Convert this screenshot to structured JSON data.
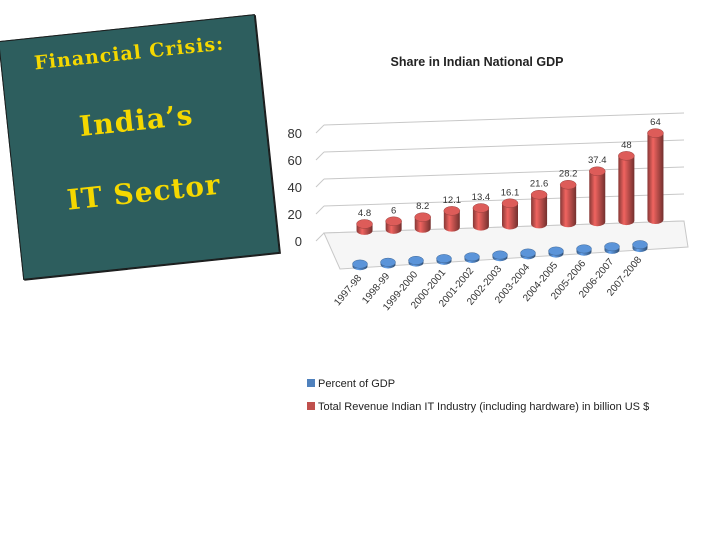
{
  "slide": {
    "title_line1": "Financial Crisis:",
    "title_line2": "India’s",
    "title_line3": "IT Sector",
    "card_color": "#2d5e5e",
    "title_color": "#f5d800"
  },
  "chart_data": {
    "type": "bar",
    "title": "Share in Indian National GDP",
    "categories": [
      "1997-98",
      "1998-99",
      "1999-2000",
      "2000-2001",
      "2001-2002",
      "2002-2003",
      "2003-2004",
      "2004-2005",
      "2005-2006",
      "2006-2007",
      "2007-2008"
    ],
    "series": [
      {
        "name": "Percent of GDP",
        "color": "#4f81bd",
        "values": [
          1.2,
          1.4,
          1.9,
          2.7,
          3.2,
          3.1,
          3.9,
          4.2,
          4.8,
          5.5,
          5.9
        ]
      },
      {
        "name": "Total Revenue Indian IT Industry (including hardware) in billion US $",
        "color": "#c0504d",
        "values": [
          4.8,
          6,
          8.2,
          12.1,
          13.4,
          16.1,
          21.6,
          28.2,
          37.4,
          48,
          64
        ],
        "labels": [
          "4.8",
          "6",
          "8.2",
          "12.1",
          "13.4",
          "16.1",
          "21.6",
          "28.2",
          "37.4",
          "48",
          "64"
        ]
      }
    ],
    "yticks": [
      "0",
      "20",
      "40",
      "60",
      "80"
    ],
    "ylim": [
      0,
      80
    ],
    "grid": true,
    "legend_position": "bottom-left"
  }
}
